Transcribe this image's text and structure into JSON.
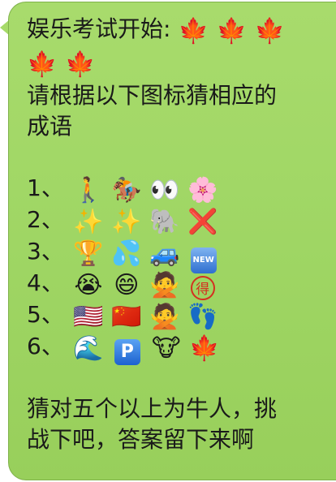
{
  "message": {
    "title": "娱乐考试开始:",
    "title_emojis": [
      "🍁",
      "🍁",
      "🍁"
    ],
    "second_line_emojis": [
      "🍁",
      "🍁"
    ],
    "instruction": "请根据以下图标猜相应的成语",
    "instruction_line1": "请根据以下图标猜相应的",
    "instruction_line2": "成语",
    "puzzles": [
      {
        "number": "1、",
        "items": [
          "🚶",
          "🏇",
          "👀",
          "🌸"
        ]
      },
      {
        "number": "2、",
        "items": [
          "✨",
          "✨",
          "🐘",
          "❌"
        ]
      },
      {
        "number": "3、",
        "items": [
          "🏆",
          "💦",
          "🚙",
          "NEW"
        ]
      },
      {
        "number": "4、",
        "items": [
          "😭",
          "😄",
          "🙅",
          "得"
        ]
      },
      {
        "number": "5、",
        "items": [
          "🇺🇸",
          "🇨🇳",
          "🙅",
          "👣"
        ]
      },
      {
        "number": "6、",
        "items": [
          "🌊",
          "P",
          "🐮",
          "🍁"
        ]
      }
    ],
    "footer_line1": "猜对五个以上为牛人，挑",
    "footer_line2": "战下吧，答案留下来啊"
  },
  "colors": {
    "bubble": "#a6da69",
    "bubble_border": "#7fb24a",
    "text": "#1a1a1a"
  }
}
